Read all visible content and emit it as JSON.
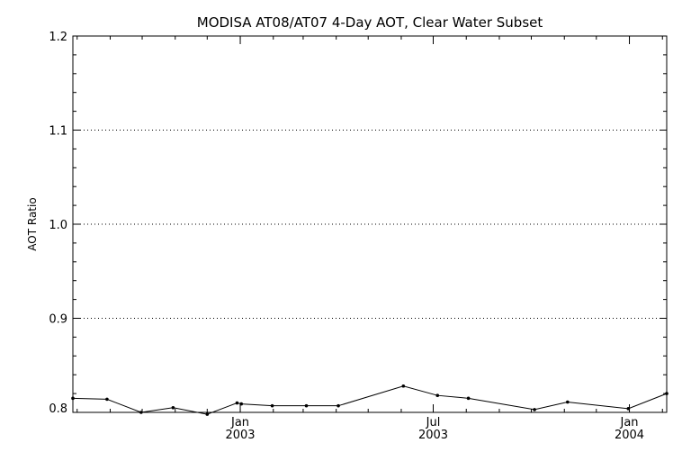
{
  "chart_data": {
    "type": "line",
    "title": "MODISA AT08/AT07 4-Day AOT, Clear Water Subset",
    "ylabel": "AOT Ratio",
    "xlabel": "",
    "ylim": [
      0.8,
      1.2
    ],
    "xlim": [
      "2002-07-28",
      "2004-02-05"
    ],
    "y_ticks": [
      "0.8",
      "0.9",
      "1.0",
      "1.1",
      "1.2"
    ],
    "x_ticks": [
      {
        "date": "2003-01-01",
        "month": "Jan",
        "year": "2003"
      },
      {
        "date": "2003-07-01",
        "month": "Jul",
        "year": "2003"
      },
      {
        "date": "2004-01-01",
        "month": "Jan",
        "year": "2004"
      }
    ],
    "grid": "dotted horizontal at 0.9, 1.0, 1.1",
    "series": [
      {
        "x": [
          "2002-07-28",
          "2002-08-29",
          "2002-09-30",
          "2002-10-30",
          "2002-12-01",
          "2002-12-29",
          "2003-01-02",
          "2003-01-31",
          "2003-03-04",
          "2003-04-03",
          "2003-06-03",
          "2003-07-05",
          "2003-08-03",
          "2003-10-04",
          "2003-11-04",
          "2003-12-31",
          "2004-02-05"
        ],
        "values": [
          0.815,
          0.814,
          0.8,
          0.805,
          0.798,
          0.81,
          0.809,
          0.807,
          0.807,
          0.807,
          0.828,
          0.818,
          0.815,
          0.803,
          0.811,
          0.804,
          0.82
        ]
      }
    ],
    "colors": {
      "line": "#000000",
      "grid": "#000000",
      "background": "#ffffff"
    }
  }
}
